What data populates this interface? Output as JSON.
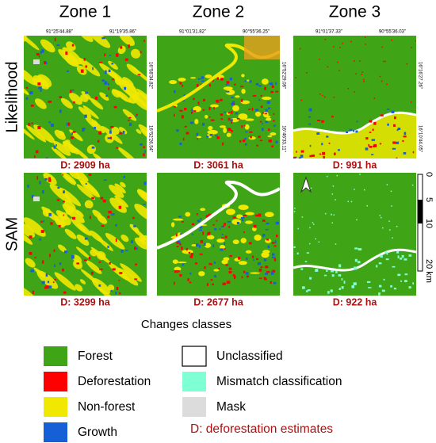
{
  "zones": [
    "Zone 1",
    "Zone 2",
    "Zone 3"
  ],
  "methods": [
    "Likelihood",
    "SAM"
  ],
  "coordinates": [
    {
      "top": [
        "91°25'44.88\"",
        "91°19'35.86\""
      ],
      "right": [
        "16°58'34.82\"",
        "16°52'26.54\""
      ]
    },
    {
      "top": [
        "91°01'31.82\"",
        "90°55'36.25\""
      ],
      "right": [
        "16°52'29.08\"",
        "16°46'33.11\""
      ]
    },
    {
      "top": [
        "91°01'37.33\"",
        "90°55'36.03\""
      ],
      "right": [
        "16°16'27.26\"",
        "16°10'44.05\""
      ]
    }
  ],
  "deforestation": [
    [
      "D: 2909 ha",
      "D: 3061 ha",
      "D: 991 ha"
    ],
    [
      "D: 3299 ha",
      "D: 2677 ha",
      "D: 922 ha"
    ]
  ],
  "scale_bar": [
    "0",
    "5",
    "10",
    "20 km"
  ],
  "legend": {
    "title": "Changes classes",
    "items": [
      {
        "label": "Forest",
        "color": "#3fa516"
      },
      {
        "label": "Deforestation",
        "color": "#ff0000"
      },
      {
        "label": "Non-forest",
        "color": "#f0e800"
      },
      {
        "label": "Growth",
        "color": "#1560d6"
      },
      {
        "label": "Unclassified",
        "color": "#ffffff"
      },
      {
        "label": "Mismatch classification",
        "color": "#7fffd4"
      },
      {
        "label": "Mask",
        "color": "#dcdcdc"
      }
    ],
    "note": "D: deforestation estimates"
  }
}
